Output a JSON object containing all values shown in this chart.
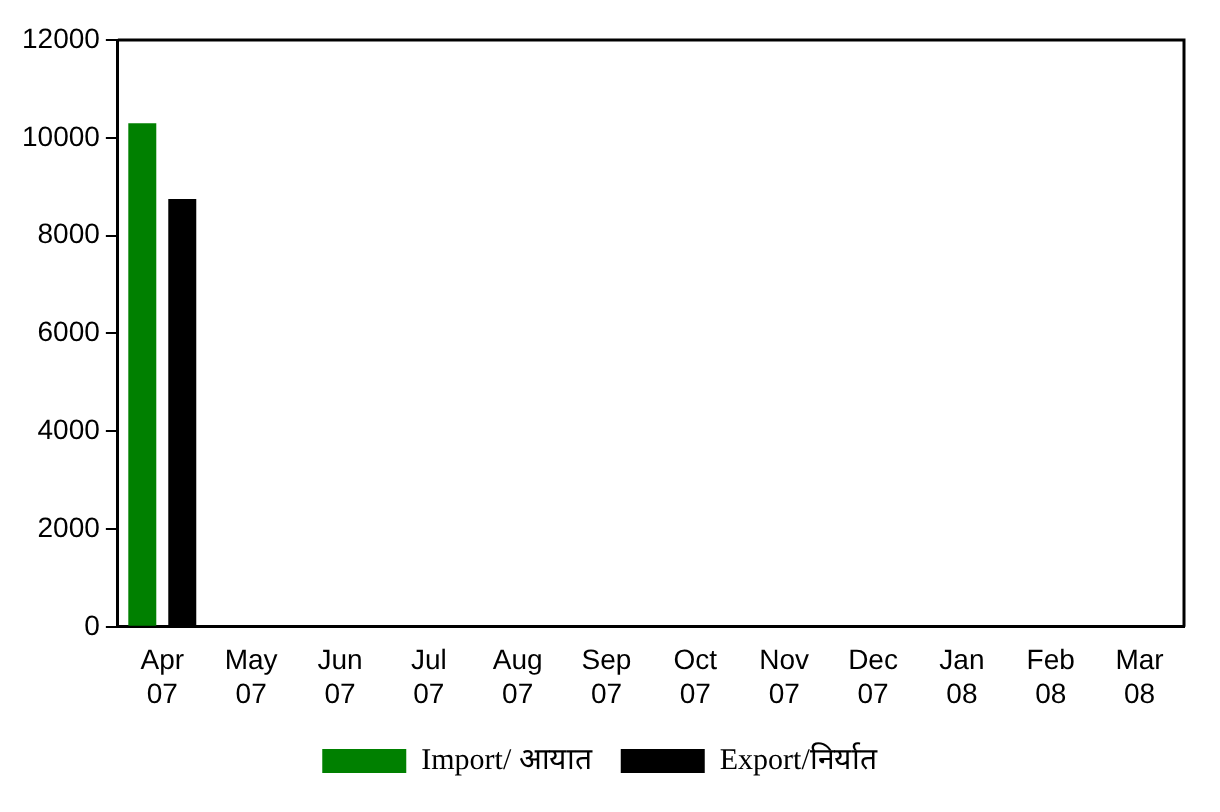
{
  "chart_data": {
    "type": "bar",
    "categories": [
      "Apr 07",
      "May 07",
      "Jun 07",
      "Jul 07",
      "Aug 07",
      "Sep 07",
      "Oct 07",
      "Nov 07",
      "Dec 07",
      "Jan 08",
      "Feb 08",
      "Mar 08"
    ],
    "series": [
      {
        "name": "Import/ आयात",
        "color": "#008000",
        "values": [
          10300,
          null,
          null,
          null,
          null,
          null,
          null,
          null,
          null,
          null,
          null,
          null
        ]
      },
      {
        "name": "Export/निर्यात",
        "color": "#000000",
        "values": [
          8750,
          null,
          null,
          null,
          null,
          null,
          null,
          null,
          null,
          null,
          null,
          null
        ]
      }
    ],
    "ylim": [
      0,
      12000
    ],
    "yticks": [
      0,
      2000,
      4000,
      6000,
      8000,
      10000,
      12000
    ],
    "grid": false,
    "legend": "bottom"
  }
}
